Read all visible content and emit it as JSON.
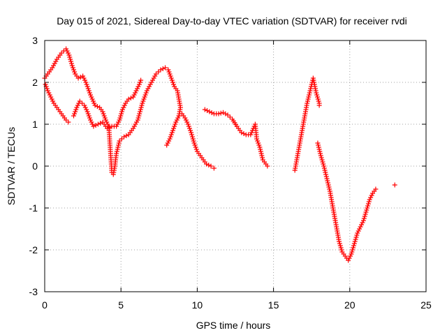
{
  "chart_data": {
    "type": "scatter",
    "title": "Day 015 of 2021, Sidereal Day-to-day VTEC variation (SDTVAR) for receiver rvdi",
    "xlabel": "GPS time / hours",
    "ylabel": "SDTVAR / TECUs",
    "xlim": [
      0,
      25
    ],
    "ylim": [
      -3,
      3
    ],
    "xticks": [
      "0",
      "5",
      "10",
      "15",
      "20",
      "25"
    ],
    "yticks": [
      "-3",
      "-2",
      "-1",
      "0",
      "1",
      "2",
      "3"
    ],
    "grid": true,
    "marker": "plus",
    "color": "#ff0000",
    "series": [
      {
        "values": [
          [
            0.0,
            2.1
          ],
          [
            0.2,
            2.2
          ],
          [
            0.5,
            2.35
          ],
          [
            0.8,
            2.55
          ],
          [
            1.1,
            2.7
          ],
          [
            1.4,
            2.8
          ],
          [
            1.6,
            2.65
          ],
          [
            1.8,
            2.4
          ],
          [
            2.0,
            2.2
          ],
          [
            2.2,
            2.1
          ],
          [
            2.5,
            2.15
          ],
          [
            2.7,
            2.0
          ],
          [
            3.0,
            1.7
          ],
          [
            3.3,
            1.45
          ],
          [
            3.6,
            1.4
          ],
          [
            3.8,
            1.3
          ],
          [
            4.0,
            1.1
          ],
          [
            4.2,
            0.95
          ],
          [
            4.4,
            -0.15
          ],
          [
            4.5,
            -0.2
          ],
          [
            4.6,
            0.0
          ],
          [
            4.7,
            0.3
          ],
          [
            4.9,
            0.6
          ],
          [
            5.2,
            0.7
          ],
          [
            5.5,
            0.75
          ],
          [
            5.8,
            0.9
          ],
          [
            6.1,
            1.1
          ],
          [
            6.4,
            1.5
          ],
          [
            6.7,
            1.8
          ],
          [
            7.0,
            2.0
          ],
          [
            7.3,
            2.2
          ],
          [
            7.6,
            2.3
          ],
          [
            7.9,
            2.35
          ],
          [
            8.1,
            2.3
          ],
          [
            8.3,
            2.1
          ],
          [
            8.5,
            1.9
          ],
          [
            8.7,
            1.8
          ],
          [
            8.9,
            1.4
          ],
          [
            8.8,
            1.2
          ]
        ]
      },
      {
        "values": [
          [
            0.05,
            1.95
          ],
          [
            0.2,
            1.8
          ],
          [
            0.4,
            1.65
          ],
          [
            0.6,
            1.5
          ],
          [
            0.8,
            1.4
          ],
          [
            1.0,
            1.3
          ],
          [
            1.2,
            1.2
          ],
          [
            1.4,
            1.1
          ],
          [
            1.55,
            1.05
          ]
        ]
      },
      {
        "values": [
          [
            1.9,
            1.2
          ],
          [
            2.1,
            1.4
          ],
          [
            2.3,
            1.55
          ],
          [
            2.6,
            1.45
          ],
          [
            2.8,
            1.3
          ],
          [
            3.0,
            1.1
          ],
          [
            3.2,
            0.95
          ],
          [
            3.5,
            1.0
          ],
          [
            3.8,
            1.05
          ],
          [
            4.1,
            0.9
          ],
          [
            4.4,
            0.95
          ],
          [
            4.7,
            0.95
          ],
          [
            4.9,
            1.1
          ],
          [
            5.1,
            1.35
          ],
          [
            5.3,
            1.5
          ],
          [
            5.5,
            1.6
          ],
          [
            5.8,
            1.65
          ],
          [
            6.0,
            1.8
          ],
          [
            6.2,
            1.95
          ],
          [
            6.3,
            2.05
          ]
        ]
      },
      {
        "values": [
          [
            8.0,
            0.5
          ],
          [
            8.2,
            0.65
          ],
          [
            8.4,
            0.85
          ],
          [
            8.6,
            1.05
          ],
          [
            8.8,
            1.2
          ],
          [
            9.0,
            1.25
          ],
          [
            9.2,
            1.15
          ],
          [
            9.4,
            1.0
          ],
          [
            9.6,
            0.8
          ],
          [
            9.8,
            0.55
          ],
          [
            10.0,
            0.35
          ],
          [
            10.3,
            0.2
          ],
          [
            10.6,
            0.05
          ],
          [
            10.9,
            0.0
          ],
          [
            11.1,
            -0.05
          ]
        ]
      },
      {
        "values": [
          [
            10.5,
            1.35
          ],
          [
            10.8,
            1.3
          ],
          [
            11.1,
            1.25
          ],
          [
            11.4,
            1.25
          ],
          [
            11.7,
            1.28
          ],
          [
            12.0,
            1.22
          ],
          [
            12.3,
            1.12
          ],
          [
            12.6,
            0.95
          ],
          [
            12.9,
            0.8
          ],
          [
            13.2,
            0.75
          ],
          [
            13.5,
            0.75
          ],
          [
            13.8,
            1.0
          ],
          [
            13.9,
            0.65
          ],
          [
            14.1,
            0.45
          ],
          [
            14.3,
            0.15
          ],
          [
            14.5,
            0.05
          ],
          [
            14.6,
            0.0
          ]
        ]
      },
      {
        "values": [
          [
            16.4,
            -0.1
          ],
          [
            16.6,
            0.3
          ],
          [
            16.8,
            0.7
          ],
          [
            17.0,
            1.1
          ],
          [
            17.2,
            1.5
          ],
          [
            17.4,
            1.8
          ],
          [
            17.6,
            2.1
          ],
          [
            17.8,
            1.75
          ],
          [
            18.0,
            1.5
          ],
          [
            18.0,
            1.45
          ]
        ]
      },
      {
        "values": [
          [
            17.9,
            0.55
          ],
          [
            18.1,
            0.25
          ],
          [
            18.3,
            0.0
          ],
          [
            18.5,
            -0.3
          ],
          [
            18.7,
            -0.6
          ],
          [
            18.9,
            -1.0
          ],
          [
            19.1,
            -1.4
          ],
          [
            19.3,
            -1.8
          ],
          [
            19.5,
            -2.05
          ],
          [
            19.7,
            -2.15
          ],
          [
            19.9,
            -2.25
          ],
          [
            20.1,
            -2.1
          ],
          [
            20.3,
            -1.85
          ],
          [
            20.5,
            -1.6
          ],
          [
            20.7,
            -1.45
          ],
          [
            20.9,
            -1.3
          ],
          [
            21.1,
            -1.05
          ],
          [
            21.3,
            -0.8
          ],
          [
            21.5,
            -0.65
          ],
          [
            21.7,
            -0.55
          ]
        ]
      },
      {
        "values": [
          [
            22.95,
            -0.45
          ]
        ]
      }
    ]
  }
}
